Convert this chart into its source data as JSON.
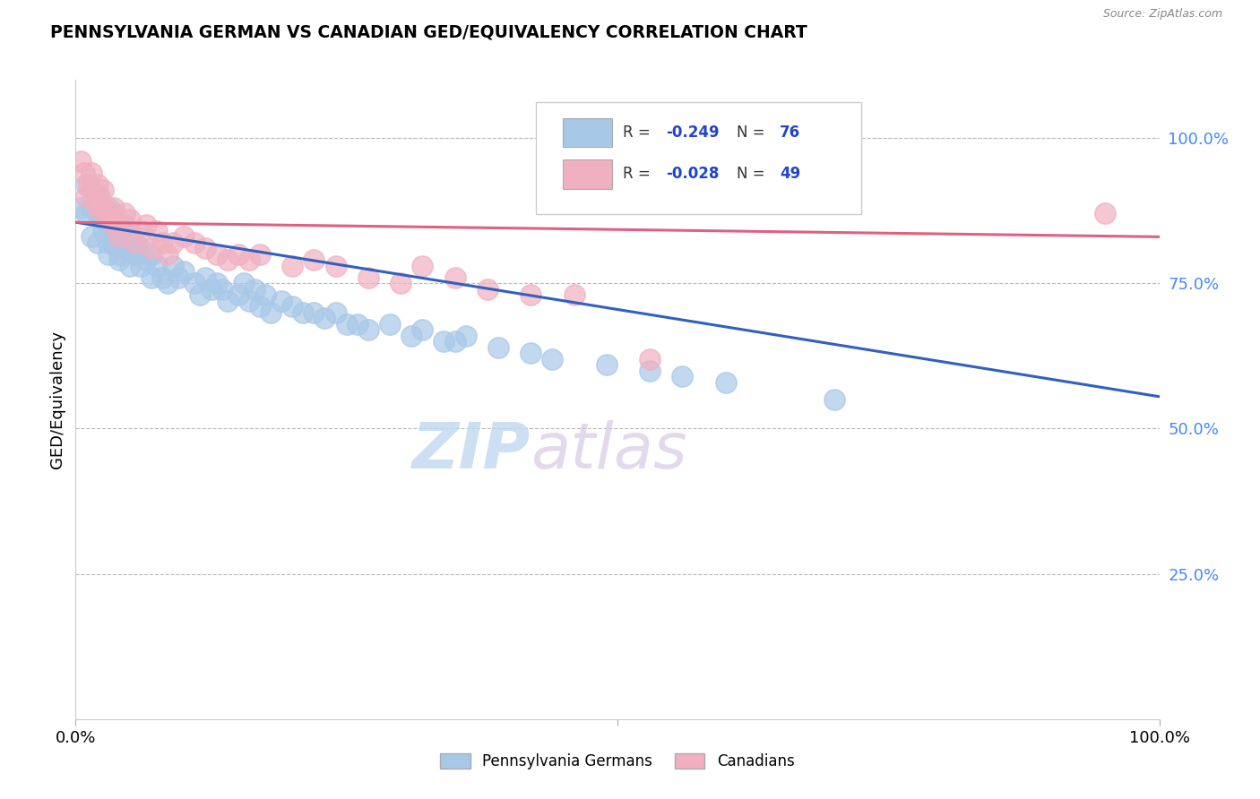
{
  "title": "PENNSYLVANIA GERMAN VS CANADIAN GED/EQUIVALENCY CORRELATION CHART",
  "source": "Source: ZipAtlas.com",
  "ylabel": "GED/Equivalency",
  "ytick_values": [
    0.25,
    0.5,
    0.75,
    1.0
  ],
  "legend_series1": "Pennsylvania Germans",
  "legend_series2": "Canadians",
  "blue_color": "#a8c8e8",
  "pink_color": "#f0b0c0",
  "blue_line_color": "#3060c0",
  "pink_line_color": "#e06080",
  "watermark_zip": "ZIP",
  "watermark_atlas": "atlas",
  "background_color": "#ffffff",
  "grid_color": "#bbbbbb",
  "blue_points_x": [
    0.005,
    0.01,
    0.01,
    0.015,
    0.015,
    0.02,
    0.02,
    0.02,
    0.025,
    0.025,
    0.025,
    0.03,
    0.03,
    0.03,
    0.03,
    0.035,
    0.035,
    0.035,
    0.04,
    0.04,
    0.04,
    0.045,
    0.045,
    0.05,
    0.05,
    0.05,
    0.055,
    0.055,
    0.06,
    0.06,
    0.065,
    0.07,
    0.07,
    0.075,
    0.08,
    0.085,
    0.09,
    0.095,
    0.1,
    0.11,
    0.115,
    0.12,
    0.125,
    0.13,
    0.135,
    0.14,
    0.15,
    0.155,
    0.16,
    0.165,
    0.17,
    0.175,
    0.18,
    0.19,
    0.2,
    0.21,
    0.22,
    0.23,
    0.24,
    0.25,
    0.26,
    0.27,
    0.29,
    0.31,
    0.32,
    0.34,
    0.35,
    0.36,
    0.39,
    0.42,
    0.44,
    0.49,
    0.53,
    0.56,
    0.6,
    0.7
  ],
  "blue_points_y": [
    0.88,
    0.92,
    0.87,
    0.88,
    0.83,
    0.9,
    0.87,
    0.82,
    0.86,
    0.84,
    0.88,
    0.82,
    0.88,
    0.8,
    0.85,
    0.84,
    0.82,
    0.87,
    0.8,
    0.84,
    0.79,
    0.81,
    0.85,
    0.81,
    0.78,
    0.84,
    0.8,
    0.82,
    0.78,
    0.81,
    0.79,
    0.76,
    0.8,
    0.78,
    0.76,
    0.75,
    0.78,
    0.76,
    0.77,
    0.75,
    0.73,
    0.76,
    0.74,
    0.75,
    0.74,
    0.72,
    0.73,
    0.75,
    0.72,
    0.74,
    0.71,
    0.73,
    0.7,
    0.72,
    0.71,
    0.7,
    0.7,
    0.69,
    0.7,
    0.68,
    0.68,
    0.67,
    0.68,
    0.66,
    0.67,
    0.65,
    0.65,
    0.66,
    0.64,
    0.63,
    0.62,
    0.61,
    0.6,
    0.59,
    0.58,
    0.55
  ],
  "pink_points_x": [
    0.005,
    0.008,
    0.01,
    0.012,
    0.015,
    0.015,
    0.018,
    0.02,
    0.02,
    0.022,
    0.025,
    0.025,
    0.028,
    0.03,
    0.03,
    0.035,
    0.035,
    0.04,
    0.04,
    0.045,
    0.05,
    0.055,
    0.06,
    0.065,
    0.07,
    0.075,
    0.08,
    0.085,
    0.09,
    0.1,
    0.11,
    0.12,
    0.13,
    0.14,
    0.15,
    0.16,
    0.17,
    0.2,
    0.22,
    0.24,
    0.27,
    0.3,
    0.32,
    0.35,
    0.38,
    0.42,
    0.46,
    0.53,
    0.95
  ],
  "pink_points_y": [
    0.96,
    0.94,
    0.9,
    0.92,
    0.91,
    0.94,
    0.89,
    0.92,
    0.88,
    0.9,
    0.88,
    0.91,
    0.87,
    0.87,
    0.86,
    0.85,
    0.88,
    0.85,
    0.83,
    0.87,
    0.86,
    0.82,
    0.84,
    0.85,
    0.81,
    0.84,
    0.82,
    0.8,
    0.82,
    0.83,
    0.82,
    0.81,
    0.8,
    0.79,
    0.8,
    0.79,
    0.8,
    0.78,
    0.79,
    0.78,
    0.76,
    0.75,
    0.78,
    0.76,
    0.74,
    0.73,
    0.73,
    0.62,
    0.87
  ],
  "blue_line_x0": 0.0,
  "blue_line_y0": 0.855,
  "blue_line_x1": 1.0,
  "blue_line_y1": 0.555,
  "pink_line_x0": 0.0,
  "pink_line_y0": 0.855,
  "pink_line_x1": 1.0,
  "pink_line_y1": 0.83,
  "xlim": [
    0.0,
    1.0
  ],
  "ylim": [
    0.0,
    1.1
  ]
}
